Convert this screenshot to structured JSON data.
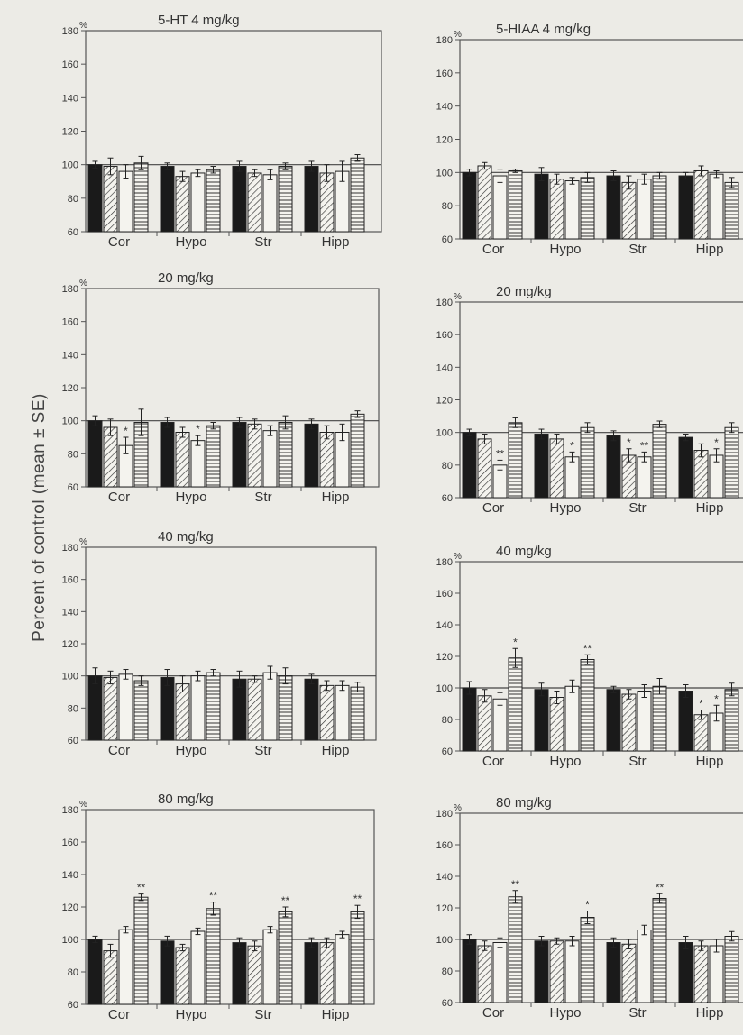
{
  "y_axis_label": "Percent of control (mean ± SE)",
  "colors": {
    "background": "#ecebe6",
    "ink": "#2b2b2b",
    "axis": "#555555",
    "solid_bar": "#1a1a1a"
  },
  "legend_patterns": [
    "solid black",
    "diagonal hatch",
    "open (white)",
    "horizontal stripes"
  ],
  "chart_data": [
    {
      "type": "bar",
      "title": "5-HT 4 mg/kg",
      "unit_label": "%",
      "categories": [
        "Cor",
        "Hypo",
        "Str",
        "Hipp"
      ],
      "ylim": [
        60,
        180
      ],
      "yticks": [
        60,
        80,
        100,
        120,
        140,
        160,
        180
      ],
      "reference_line": 100,
      "series": [
        {
          "pattern": "solid",
          "values": [
            100,
            99,
            99,
            99
          ],
          "errors": [
            2,
            2,
            3,
            3
          ],
          "stars": [
            "",
            "",
            "",
            ""
          ]
        },
        {
          "pattern": "diagonal",
          "values": [
            99,
            93,
            95,
            95
          ],
          "errors": [
            5,
            3,
            2,
            5
          ],
          "stars": [
            "",
            "",
            "",
            ""
          ]
        },
        {
          "pattern": "open",
          "values": [
            96,
            95,
            94,
            96
          ],
          "errors": [
            4,
            2,
            3,
            6
          ],
          "stars": [
            "",
            "",
            "",
            ""
          ]
        },
        {
          "pattern": "horizontal",
          "values": [
            101,
            97,
            99,
            104
          ],
          "errors": [
            4,
            2,
            2,
            2
          ],
          "stars": [
            "",
            "",
            "",
            ""
          ]
        }
      ]
    },
    {
      "type": "bar",
      "title": "5-HIAA 4 mg/kg",
      "unit_label": "%",
      "categories": [
        "Cor",
        "Hypo",
        "Str",
        "Hipp"
      ],
      "ylim": [
        60,
        180
      ],
      "yticks": [
        60,
        80,
        100,
        120,
        140,
        160,
        180
      ],
      "reference_line": 100,
      "series": [
        {
          "pattern": "solid",
          "values": [
            100,
            99,
            98,
            98
          ],
          "errors": [
            2,
            4,
            3,
            2
          ],
          "stars": [
            "",
            "",
            "",
            ""
          ]
        },
        {
          "pattern": "diagonal",
          "values": [
            104,
            96,
            94,
            101
          ],
          "errors": [
            2,
            3,
            4,
            3
          ],
          "stars": [
            "",
            "",
            "",
            ""
          ]
        },
        {
          "pattern": "open",
          "values": [
            98,
            95,
            96,
            99
          ],
          "errors": [
            4,
            2,
            3,
            2
          ],
          "stars": [
            "",
            "",
            "",
            ""
          ]
        },
        {
          "pattern": "horizontal",
          "values": [
            101,
            97,
            98,
            94
          ],
          "errors": [
            1,
            3,
            2,
            3
          ],
          "stars": [
            "",
            "",
            "",
            ""
          ]
        }
      ]
    },
    {
      "type": "bar",
      "title": "20 mg/kg",
      "unit_label": "%",
      "categories": [
        "Cor",
        "Hypo",
        "Str",
        "Hipp"
      ],
      "ylim": [
        60,
        180
      ],
      "yticks": [
        60,
        80,
        100,
        120,
        140,
        160,
        180
      ],
      "reference_line": 100,
      "series": [
        {
          "pattern": "solid",
          "values": [
            100,
            99,
            99,
            98
          ],
          "errors": [
            3,
            3,
            3,
            3
          ],
          "stars": [
            "",
            "",
            "",
            ""
          ]
        },
        {
          "pattern": "diagonal",
          "values": [
            96,
            93,
            98,
            93
          ],
          "errors": [
            5,
            3,
            3,
            4
          ],
          "stars": [
            "",
            "",
            "",
            ""
          ]
        },
        {
          "pattern": "open",
          "values": [
            85,
            88,
            94,
            93
          ],
          "errors": [
            5,
            3,
            3,
            5
          ],
          "stars": [
            "*",
            "*",
            "",
            ""
          ]
        },
        {
          "pattern": "horizontal",
          "values": [
            99,
            97,
            99,
            104
          ],
          "errors": [
            8,
            2,
            4,
            2
          ],
          "stars": [
            "",
            "",
            "",
            ""
          ]
        }
      ]
    },
    {
      "type": "bar",
      "title": "20 mg/kg",
      "unit_label": "%",
      "categories": [
        "Cor",
        "Hypo",
        "Str",
        "Hipp"
      ],
      "ylim": [
        60,
        180
      ],
      "yticks": [
        60,
        80,
        100,
        120,
        140,
        160,
        180
      ],
      "reference_line": 100,
      "series": [
        {
          "pattern": "solid",
          "values": [
            100,
            99,
            98,
            97
          ],
          "errors": [
            2,
            3,
            3,
            2
          ],
          "stars": [
            "",
            "",
            "",
            ""
          ]
        },
        {
          "pattern": "diagonal",
          "values": [
            96,
            96,
            86,
            89
          ],
          "errors": [
            3,
            3,
            4,
            4
          ],
          "stars": [
            "",
            "",
            "*",
            ""
          ]
        },
        {
          "pattern": "open",
          "values": [
            80,
            85,
            85,
            86
          ],
          "errors": [
            3,
            3,
            3,
            4
          ],
          "stars": [
            "**",
            "*",
            "**",
            "*"
          ]
        },
        {
          "pattern": "horizontal",
          "values": [
            106,
            103,
            105,
            103
          ],
          "errors": [
            3,
            3,
            2,
            3
          ],
          "stars": [
            "",
            "",
            "",
            ""
          ]
        }
      ]
    },
    {
      "type": "bar",
      "title": "40 mg/kg",
      "unit_label": "%",
      "categories": [
        "Cor",
        "Hypo",
        "Str",
        "Hipp"
      ],
      "ylim": [
        60,
        180
      ],
      "yticks": [
        60,
        80,
        100,
        120,
        140,
        160,
        180
      ],
      "reference_line": 100,
      "series": [
        {
          "pattern": "solid",
          "values": [
            100,
            99,
            98,
            98
          ],
          "errors": [
            5,
            5,
            5,
            3
          ],
          "stars": [
            "",
            "",
            "",
            ""
          ]
        },
        {
          "pattern": "diagonal",
          "values": [
            99,
            95,
            98,
            94
          ],
          "errors": [
            4,
            5,
            2,
            3
          ],
          "stars": [
            "",
            "",
            "",
            ""
          ]
        },
        {
          "pattern": "open",
          "values": [
            101,
            100,
            102,
            94
          ],
          "errors": [
            3,
            3,
            4,
            3
          ],
          "stars": [
            "",
            "",
            "",
            ""
          ]
        },
        {
          "pattern": "horizontal",
          "values": [
            97,
            102,
            100,
            93
          ],
          "errors": [
            3,
            2,
            5,
            3
          ],
          "stars": [
            "",
            "",
            "",
            ""
          ]
        }
      ]
    },
    {
      "type": "bar",
      "title": "40 mg/kg",
      "unit_label": "%",
      "categories": [
        "Cor",
        "Hypo",
        "Str",
        "Hipp"
      ],
      "ylim": [
        60,
        180
      ],
      "yticks": [
        60,
        80,
        100,
        120,
        140,
        160,
        180
      ],
      "reference_line": 100,
      "series": [
        {
          "pattern": "solid",
          "values": [
            100,
            99,
            99,
            98
          ],
          "errors": [
            4,
            4,
            2,
            4
          ],
          "stars": [
            "",
            "",
            "",
            ""
          ]
        },
        {
          "pattern": "diagonal",
          "values": [
            95,
            94,
            96,
            83
          ],
          "errors": [
            4,
            4,
            3,
            3
          ],
          "stars": [
            "",
            "",
            "",
            "*"
          ]
        },
        {
          "pattern": "open",
          "values": [
            93,
            101,
            98,
            84
          ],
          "errors": [
            4,
            4,
            4,
            5
          ],
          "stars": [
            "",
            "",
            "",
            "*"
          ]
        },
        {
          "pattern": "horizontal",
          "values": [
            119,
            118,
            101,
            99
          ],
          "errors": [
            6,
            3,
            5,
            4
          ],
          "stars": [
            "*",
            "**",
            "",
            ""
          ]
        }
      ]
    },
    {
      "type": "bar",
      "title": "80 mg/kg",
      "unit_label": "%",
      "categories": [
        "Cor",
        "Hypo",
        "Str",
        "Hipp"
      ],
      "ylim": [
        60,
        180
      ],
      "yticks": [
        60,
        80,
        100,
        120,
        140,
        160,
        180
      ],
      "reference_line": 100,
      "series": [
        {
          "pattern": "solid",
          "values": [
            100,
            99,
            98,
            98
          ],
          "errors": [
            2,
            3,
            3,
            3
          ],
          "stars": [
            "",
            "",
            "",
            ""
          ]
        },
        {
          "pattern": "diagonal",
          "values": [
            93,
            95,
            96,
            98
          ],
          "errors": [
            4,
            2,
            3,
            3
          ],
          "stars": [
            "",
            "",
            "",
            ""
          ]
        },
        {
          "pattern": "open",
          "values": [
            106,
            105,
            106,
            103
          ],
          "errors": [
            2,
            2,
            2,
            2
          ],
          "stars": [
            "",
            "",
            "",
            ""
          ]
        },
        {
          "pattern": "horizontal",
          "values": [
            126,
            119,
            117,
            117
          ],
          "errors": [
            2,
            4,
            3,
            4
          ],
          "stars": [
            "**",
            "**",
            "**",
            "**"
          ]
        }
      ]
    },
    {
      "type": "bar",
      "title": "80 mg/kg",
      "unit_label": "%",
      "categories": [
        "Cor",
        "Hypo",
        "Str",
        "Hipp"
      ],
      "ylim": [
        60,
        180
      ],
      "yticks": [
        60,
        80,
        100,
        120,
        140,
        160,
        180
      ],
      "reference_line": 100,
      "series": [
        {
          "pattern": "solid",
          "values": [
            100,
            99,
            98,
            98
          ],
          "errors": [
            3,
            3,
            3,
            4
          ],
          "stars": [
            "",
            "",
            "",
            ""
          ]
        },
        {
          "pattern": "diagonal",
          "values": [
            96,
            99,
            97,
            96
          ],
          "errors": [
            3,
            2,
            3,
            3
          ],
          "stars": [
            "",
            "",
            "",
            ""
          ]
        },
        {
          "pattern": "open",
          "values": [
            98,
            99,
            106,
            96
          ],
          "errors": [
            3,
            3,
            3,
            4
          ],
          "stars": [
            "",
            "",
            "",
            ""
          ]
        },
        {
          "pattern": "horizontal",
          "values": [
            127,
            114,
            126,
            102
          ],
          "errors": [
            4,
            4,
            3,
            3
          ],
          "stars": [
            "**",
            "*",
            "**",
            ""
          ]
        }
      ]
    }
  ]
}
